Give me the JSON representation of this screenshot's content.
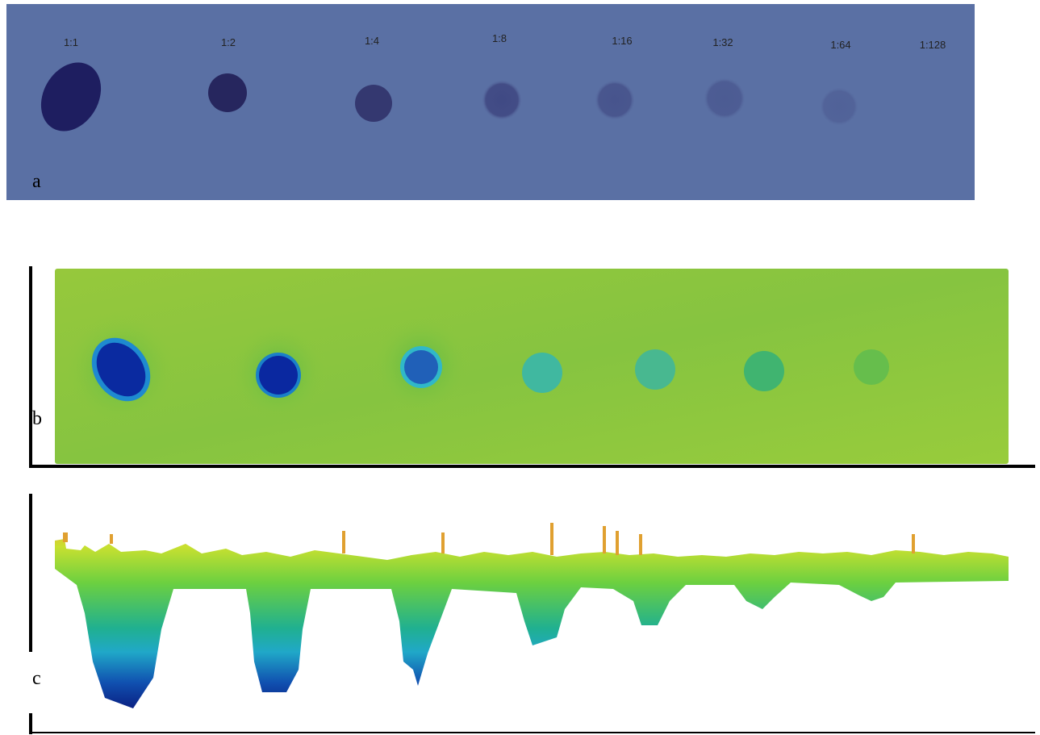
{
  "panel_a": {
    "label": "a",
    "dilutions": [
      "1:1",
      "1:2",
      "1:4",
      "1:8",
      "1:16",
      "1:32",
      "1:64",
      "1:128"
    ]
  },
  "panel_b": {
    "label": "b"
  },
  "panel_c": {
    "label": "c"
  }
}
